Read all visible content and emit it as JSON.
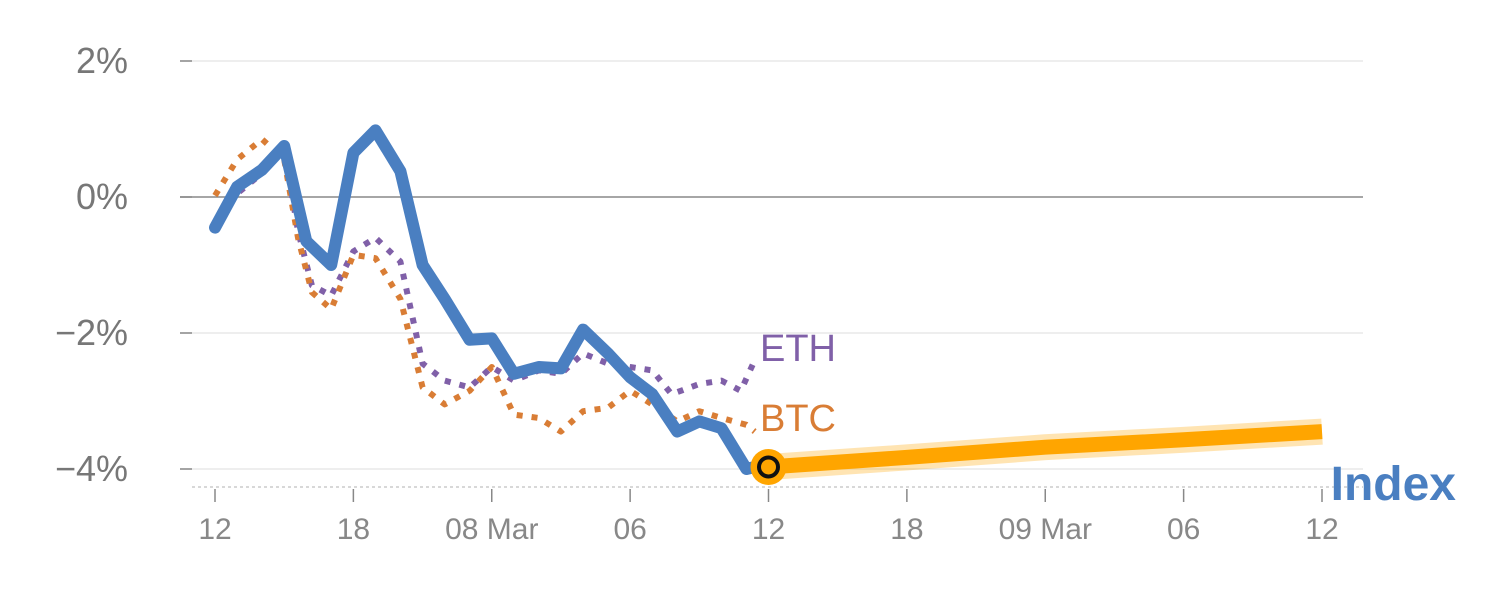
{
  "chart_data": {
    "type": "line",
    "y_unit": "%",
    "ylim": [
      -4.2,
      2.0
    ],
    "y_ticks": [
      {
        "value": 2,
        "label": "2%"
      },
      {
        "value": 0,
        "label": "0%"
      },
      {
        "value": -2,
        "label": "−2%"
      },
      {
        "value": -4,
        "label": "−4%"
      }
    ],
    "x_domain": [
      0,
      40
    ],
    "x_ticks": [
      {
        "x": 0,
        "label": "12"
      },
      {
        "x": 5,
        "label": "18"
      },
      {
        "x": 10,
        "label": "08 Mar"
      },
      {
        "x": 15,
        "label": "06"
      },
      {
        "x": 20,
        "label": "12"
      },
      {
        "x": 25,
        "label": "18"
      },
      {
        "x": 30,
        "label": "09 Mar"
      },
      {
        "x": 35,
        "label": "06"
      },
      {
        "x": 40,
        "label": "12"
      }
    ],
    "series": [
      {
        "name": "Index",
        "label": "Index",
        "color": "#4a7fc1",
        "style": "solid",
        "points": [
          [
            0,
            -0.45
          ],
          [
            0.8,
            0.15
          ],
          [
            1.7,
            0.4
          ],
          [
            2.5,
            0.75
          ],
          [
            3.3,
            -0.65
          ],
          [
            4.2,
            -1.0
          ],
          [
            5.0,
            0.65
          ],
          [
            5.8,
            0.98
          ],
          [
            6.7,
            0.38
          ],
          [
            7.5,
            -1.0
          ],
          [
            8.3,
            -1.5
          ],
          [
            9.2,
            -2.1
          ],
          [
            10.0,
            -2.08
          ],
          [
            10.8,
            -2.6
          ],
          [
            11.7,
            -2.5
          ],
          [
            12.5,
            -2.52
          ],
          [
            13.3,
            -1.95
          ],
          [
            14.2,
            -2.3
          ],
          [
            15.0,
            -2.65
          ],
          [
            15.8,
            -2.9
          ],
          [
            16.7,
            -3.45
          ],
          [
            17.5,
            -3.3
          ],
          [
            18.3,
            -3.4
          ],
          [
            19.2,
            -4.0
          ],
          [
            19.5,
            -3.97
          ]
        ]
      },
      {
        "name": "ETH",
        "label": "ETH",
        "color": "#8060a8",
        "style": "dotted",
        "points": [
          [
            0,
            -0.48
          ],
          [
            0.8,
            0.05
          ],
          [
            1.7,
            0.35
          ],
          [
            2.5,
            0.7
          ],
          [
            3.0,
            -0.5
          ],
          [
            3.5,
            -1.3
          ],
          [
            4.2,
            -1.45
          ],
          [
            5.0,
            -0.8
          ],
          [
            5.8,
            -0.6
          ],
          [
            6.7,
            -0.95
          ],
          [
            7.5,
            -2.45
          ],
          [
            8.3,
            -2.7
          ],
          [
            9.2,
            -2.8
          ],
          [
            10.0,
            -2.5
          ],
          [
            10.8,
            -2.7
          ],
          [
            11.7,
            -2.55
          ],
          [
            12.5,
            -2.6
          ],
          [
            13.3,
            -2.3
          ],
          [
            14.2,
            -2.45
          ],
          [
            15.0,
            -2.5
          ],
          [
            15.8,
            -2.55
          ],
          [
            16.5,
            -2.9
          ],
          [
            17.5,
            -2.75
          ],
          [
            18.3,
            -2.7
          ],
          [
            19.0,
            -2.85
          ],
          [
            19.5,
            -2.4
          ]
        ]
      },
      {
        "name": "BTC",
        "label": "BTC",
        "color": "#d97d35",
        "style": "dotted",
        "points": [
          [
            0,
            0.02
          ],
          [
            0.8,
            0.55
          ],
          [
            1.7,
            0.85
          ],
          [
            2.5,
            0.55
          ],
          [
            3.0,
            -0.6
          ],
          [
            3.5,
            -1.4
          ],
          [
            4.2,
            -1.65
          ],
          [
            5.0,
            -0.85
          ],
          [
            5.8,
            -0.9
          ],
          [
            6.7,
            -1.5
          ],
          [
            7.5,
            -2.8
          ],
          [
            8.3,
            -3.05
          ],
          [
            9.2,
            -2.85
          ],
          [
            10.0,
            -2.5
          ],
          [
            10.8,
            -3.2
          ],
          [
            11.7,
            -3.25
          ],
          [
            12.5,
            -3.45
          ],
          [
            13.3,
            -3.15
          ],
          [
            14.2,
            -3.1
          ],
          [
            15.0,
            -2.85
          ],
          [
            15.8,
            -3.05
          ],
          [
            16.7,
            -3.3
          ],
          [
            17.5,
            -3.15
          ],
          [
            18.3,
            -3.25
          ],
          [
            19.2,
            -3.35
          ],
          [
            19.5,
            -3.45
          ]
        ]
      }
    ],
    "projection": {
      "color": "#ffa500",
      "points": [
        [
          20,
          -3.97
        ],
        [
          25,
          -3.83
        ],
        [
          30,
          -3.68
        ],
        [
          35,
          -3.57
        ],
        [
          40,
          -3.45
        ]
      ]
    },
    "current_marker": {
      "x": 20,
      "y": -3.97
    }
  }
}
